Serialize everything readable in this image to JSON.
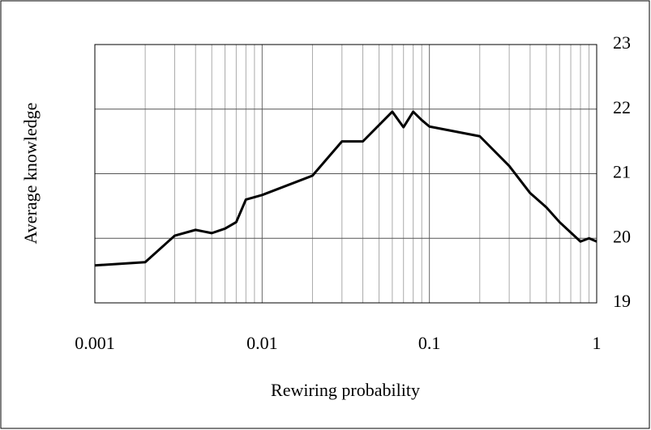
{
  "chart_data": {
    "type": "line",
    "x_label": "Rewiring probability",
    "y_label": "Average knowledge",
    "x": [
      0.001,
      0.002,
      0.003,
      0.004,
      0.005,
      0.006,
      0.007,
      0.008,
      0.01,
      0.02,
      0.03,
      0.04,
      0.06,
      0.07,
      0.08,
      0.09,
      0.1,
      0.2,
      0.3,
      0.4,
      0.5,
      0.6,
      0.8,
      0.9,
      1
    ],
    "series": [
      {
        "color": "#000000",
        "values": [
          19.58,
          19.63,
          20.04,
          20.13,
          20.08,
          20.15,
          20.25,
          20.6,
          20.67,
          20.97,
          21.5,
          21.5,
          21.96,
          21.72,
          21.96,
          21.83,
          21.73,
          21.58,
          21.12,
          20.7,
          20.48,
          20.25,
          19.95,
          20.0,
          19.95
        ]
      }
    ],
    "xlim": [
      0.001,
      1
    ],
    "xticks": [
      0.001,
      0.01,
      0.1,
      1
    ],
    "x_log": true,
    "ylim": [
      19,
      23
    ],
    "yticks": [
      19,
      20,
      21,
      22,
      23
    ],
    "y_axis_side": "right",
    "grid": true,
    "minor_grid": true
  }
}
